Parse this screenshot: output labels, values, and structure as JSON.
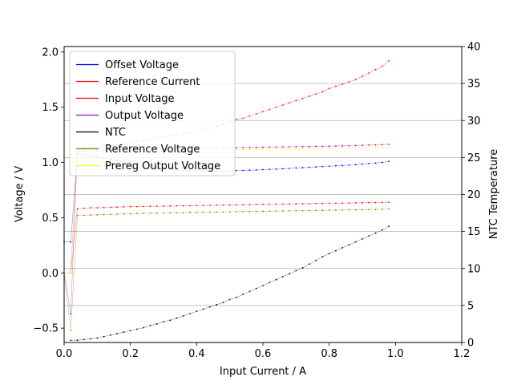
{
  "chart_data": {
    "type": "line",
    "xlabel": "Input Current / A",
    "ylabel_left": "Voltage / V",
    "ylabel_right": "NTC Temperature",
    "xlim": [
      0,
      1.2
    ],
    "ylim_left": [
      -0.63,
      2.05
    ],
    "ylim_right": [
      0,
      40
    ],
    "x_ticks": [
      "0.0",
      "0.2",
      "0.4",
      "0.6",
      "0.8",
      "1.0",
      "1.2"
    ],
    "y_left_ticks": [
      "−0.5",
      "0.0",
      "0.5",
      "1.0",
      "1.5",
      "2.0"
    ],
    "y_right_ticks": [
      "0",
      "5",
      "10",
      "15",
      "20",
      "25",
      "30",
      "35",
      "40"
    ],
    "grid": "horizontal lines on right axis ticks",
    "legend_position": "upper-left",
    "x": [
      0.0,
      0.02,
      0.04,
      0.06,
      0.08,
      0.1,
      0.12,
      0.14,
      0.16,
      0.18,
      0.2,
      0.22,
      0.24,
      0.26,
      0.28,
      0.3,
      0.32,
      0.34,
      0.36,
      0.38,
      0.4,
      0.42,
      0.44,
      0.46,
      0.48,
      0.5,
      0.52,
      0.54,
      0.56,
      0.58,
      0.6,
      0.62,
      0.64,
      0.66,
      0.68,
      0.7,
      0.72,
      0.74,
      0.76,
      0.78,
      0.8,
      0.82,
      0.84,
      0.86,
      0.88,
      0.9,
      0.92,
      0.94,
      0.96,
      0.98
    ],
    "series": [
      {
        "name": "Offset Voltage",
        "axis": "left",
        "color": "#0000ff",
        "values": [
          0.28,
          0.28,
          1.08,
          1.07,
          1.06,
          1.05,
          1.04,
          1.03,
          1.02,
          1.01,
          1.0,
          0.99,
          0.98,
          0.97,
          0.96,
          0.95,
          0.94,
          0.93,
          0.925,
          0.922,
          0.92,
          0.92,
          0.92,
          0.92,
          0.922,
          0.924,
          0.926,
          0.928,
          0.93,
          0.932,
          0.935,
          0.938,
          0.94,
          0.943,
          0.946,
          0.95,
          0.953,
          0.956,
          0.96,
          0.963,
          0.966,
          0.97,
          0.973,
          0.976,
          0.98,
          0.985,
          0.99,
          0.995,
          1.0,
          1.01
        ]
      },
      {
        "name": "Reference Current",
        "axis": "left",
        "color": "#ff0000",
        "values": [
          0.0,
          0.0,
          0.58,
          0.585,
          0.59,
          0.59,
          0.592,
          0.594,
          0.596,
          0.598,
          0.6,
          0.6,
          0.602,
          0.603,
          0.604,
          0.605,
          0.606,
          0.607,
          0.608,
          0.609,
          0.61,
          0.611,
          0.612,
          0.613,
          0.614,
          0.615,
          0.616,
          0.617,
          0.618,
          0.619,
          0.62,
          0.621,
          0.622,
          0.623,
          0.624,
          0.625,
          0.626,
          0.627,
          0.628,
          0.629,
          0.63,
          0.631,
          0.632,
          0.633,
          0.634,
          0.635,
          0.636,
          0.637,
          0.638,
          0.64
        ]
      },
      {
        "name": "Input Voltage",
        "axis": "left",
        "color": "#ff0000",
        "values": [
          0.0,
          0.0,
          1.12,
          1.13,
          1.14,
          1.14,
          1.15,
          1.15,
          1.16,
          1.17,
          1.18,
          1.19,
          1.2,
          1.21,
          1.22,
          1.23,
          1.24,
          1.25,
          1.26,
          1.27,
          1.28,
          1.3,
          1.31,
          1.33,
          1.35,
          1.37,
          1.39,
          1.4,
          1.42,
          1.44,
          1.46,
          1.48,
          1.5,
          1.52,
          1.54,
          1.56,
          1.58,
          1.6,
          1.62,
          1.64,
          1.67,
          1.69,
          1.71,
          1.73,
          1.75,
          1.78,
          1.81,
          1.84,
          1.87,
          1.92
        ]
      },
      {
        "name": "Output Voltage",
        "axis": "left",
        "color": "#9900cc",
        "values": [
          0.0,
          -0.37,
          1.1,
          1.1,
          1.105,
          1.108,
          1.11,
          1.112,
          1.114,
          1.116,
          1.118,
          1.12,
          1.12,
          1.121,
          1.122,
          1.123,
          1.124,
          1.125,
          1.126,
          1.127,
          1.128,
          1.129,
          1.13,
          1.131,
          1.132,
          1.133,
          1.134,
          1.135,
          1.136,
          1.137,
          1.138,
          1.139,
          1.14,
          1.141,
          1.142,
          1.143,
          1.144,
          1.145,
          1.146,
          1.147,
          1.148,
          1.149,
          1.15,
          1.152,
          1.154,
          1.156,
          1.158,
          1.16,
          1.162,
          1.165
        ]
      },
      {
        "name": "NTC",
        "axis": "right",
        "color": "#000000",
        "values": [
          null,
          0.3,
          0.3,
          0.4,
          0.5,
          0.6,
          0.8,
          1.0,
          1.2,
          1.4,
          1.6,
          1.8,
          2.0,
          2.3,
          2.5,
          2.8,
          3.0,
          3.3,
          3.6,
          3.9,
          4.2,
          4.5,
          4.8,
          5.1,
          5.4,
          5.8,
          6.1,
          6.5,
          6.9,
          7.3,
          7.7,
          8.1,
          8.5,
          8.9,
          9.3,
          9.7,
          10.1,
          10.6,
          11.1,
          11.6,
          12.0,
          12.4,
          12.8,
          13.2,
          13.6,
          14.0,
          14.4,
          14.8,
          15.2,
          15.7
        ]
      },
      {
        "name": "Reference Voltage",
        "axis": "left",
        "color": "#808000",
        "values": [
          0.0,
          -0.52,
          0.52,
          0.522,
          0.524,
          0.526,
          0.528,
          0.53,
          0.532,
          0.534,
          0.536,
          0.538,
          0.54,
          0.541,
          0.542,
          0.543,
          0.544,
          0.545,
          0.546,
          0.547,
          0.548,
          0.549,
          0.55,
          0.551,
          0.552,
          0.553,
          0.554,
          0.555,
          0.556,
          0.557,
          0.558,
          0.559,
          0.56,
          0.561,
          0.562,
          0.563,
          0.564,
          0.565,
          0.566,
          0.567,
          0.568,
          0.569,
          0.57,
          0.571,
          0.572,
          0.573,
          0.574,
          0.575,
          0.577,
          0.58
        ]
      },
      {
        "name": "Prereg Output Voltage",
        "axis": "left",
        "color": "#ffff00",
        "values": [
          0.0,
          0.0,
          1.15,
          1.15,
          1.15,
          1.14,
          1.14,
          1.13,
          1.13,
          1.12,
          1.12,
          1.12,
          1.11,
          1.11,
          1.11,
          1.11,
          1.11,
          1.11,
          1.11,
          1.11,
          1.11,
          1.111,
          1.112,
          1.113,
          1.114,
          1.115,
          1.116,
          1.117,
          1.118,
          1.119,
          1.12,
          1.121,
          1.122,
          1.123,
          1.124,
          1.125,
          1.126,
          1.127,
          1.128,
          1.129,
          1.13,
          1.131,
          1.132,
          1.133,
          1.134,
          1.135,
          1.136,
          1.137,
          1.138,
          1.14
        ]
      }
    ]
  }
}
